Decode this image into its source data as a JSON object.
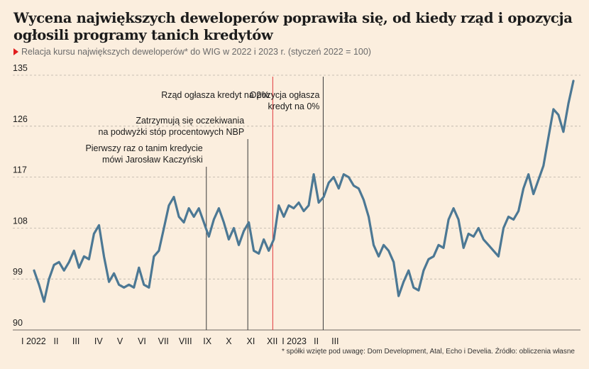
{
  "title": "Wycena największych deweloperów poprawiła się, od kiedy rząd i opozycja ogłosili programy tanich kredytów",
  "subtitle": "Relacja kursu największych deweloperów* do WIG w 2022 i 2023 r. (styczeń 2022 = 100)",
  "footnote": "* spółki wzięte pod uwagę: Dom Development, Atal, Echo i Develia. Źródło: obliczenia własne",
  "colors": {
    "background": "#fbeede",
    "line": "#4c7894",
    "grid": "#b9b1a6",
    "marker": "#3a3a3a",
    "marker_highlight": "#e0393e",
    "accent": "#e11d1d"
  },
  "chart_data": {
    "type": "line",
    "xlabel": "",
    "ylabel": "",
    "ylim": [
      90,
      135
    ],
    "yticks": [
      90,
      99,
      108,
      117,
      126,
      135
    ],
    "grid": "horizontal-dashed",
    "x_month_labels": [
      {
        "label": "I 2022",
        "week": 0
      },
      {
        "label": "II",
        "week": 4.4
      },
      {
        "label": "III",
        "week": 8.4
      },
      {
        "label": "IV",
        "week": 12.9
      },
      {
        "label": "V",
        "week": 17.2
      },
      {
        "label": "VI",
        "week": 21.6
      },
      {
        "label": "VII",
        "week": 25.9
      },
      {
        "label": "VIII",
        "week": 30.3
      },
      {
        "label": "IX",
        "week": 34.7
      },
      {
        "label": "X",
        "week": 39
      },
      {
        "label": "XI",
        "week": 43.4
      },
      {
        "label": "XII",
        "week": 47.7
      },
      {
        "label": "I 2023",
        "week": 52.1
      },
      {
        "label": "II",
        "week": 56.5
      },
      {
        "label": "III",
        "week": 60.3
      }
    ],
    "series": [
      {
        "values": [
          100.5,
          98,
          95,
          99,
          101.5,
          102,
          100.5,
          102,
          104,
          101,
          103,
          102.5,
          107,
          108.5,
          103,
          98.5,
          100,
          98,
          97.5,
          98,
          97.5,
          101,
          98,
          97.5,
          103,
          104,
          108,
          112,
          113.5,
          110,
          109,
          111.5,
          110,
          111.5,
          109,
          106.5,
          109.5,
          111.5,
          109,
          106,
          108,
          105,
          107.5,
          109,
          104,
          103.5,
          106,
          104,
          106,
          112,
          110,
          112,
          111.5,
          112.5,
          111,
          112,
          117.5,
          112.5,
          113.5,
          116,
          117,
          115,
          117.5,
          117,
          115.5,
          115,
          113,
          110,
          105,
          103,
          105,
          104,
          102,
          96,
          98.5,
          100.5,
          97.5,
          97,
          100.5,
          102.5,
          103,
          105,
          104.5,
          109.5,
          111.5,
          109.5,
          104.5,
          107,
          106.5,
          108,
          106,
          105,
          104,
          103,
          108,
          110,
          109.5,
          111,
          115,
          117.5,
          114,
          116.5,
          119,
          124,
          129,
          128,
          125,
          130,
          134
        ]
      }
    ],
    "annotations": [
      {
        "text": [
          "Pierwszy raz o tanim kredycie",
          "mówi Jarosław Kaczyński"
        ],
        "week": 34.5,
        "marker": "dark"
      },
      {
        "text": [
          "Zatrzymują się oczekiwania",
          "na podwyżki stóp procentowych NBP"
        ],
        "week": 42.8,
        "marker": "dark"
      },
      {
        "text": [
          "Rząd ogłasza kredyt na 2%"
        ],
        "week": 47.8,
        "marker": "red"
      },
      {
        "text": [
          "Opozycja ogłasza",
          "kredyt na 0%"
        ],
        "week": 57.9,
        "marker": "dark"
      }
    ]
  }
}
